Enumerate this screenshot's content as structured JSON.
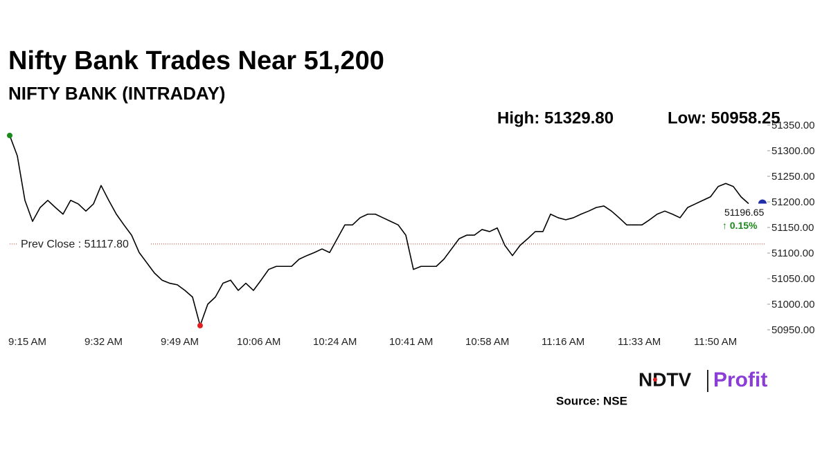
{
  "chart_data": {
    "type": "line",
    "title": "Nifty Bank Trades Near 51,200",
    "subtitle": "NIFTY BANK (INTRADAY)",
    "high": {
      "value": 51329.8,
      "label": "High: 51329.80"
    },
    "low": {
      "value": 50958.25,
      "label": "Low: 50958.25"
    },
    "prev_close": {
      "value": 51117.8,
      "label": "Prev Close : 51117.80"
    },
    "last": {
      "value": 51196.65,
      "label": "51196.65"
    },
    "change": "↑ 0.15%",
    "source": "Source: NSE",
    "brand": [
      "NDTV",
      "Profit"
    ],
    "color": "#000000",
    "categories": [
      "9:15 AM",
      null,
      null,
      null,
      null,
      null,
      null,
      null,
      null,
      null,
      "9:32 AM",
      null,
      null,
      null,
      null,
      null,
      null,
      null,
      null,
      null,
      "9:49 AM",
      null,
      null,
      null,
      null,
      null,
      null,
      null,
      null,
      null,
      "10:06 AM",
      null,
      null,
      null,
      null,
      null,
      null,
      null,
      null,
      null,
      "10:24 AM",
      null,
      null,
      null,
      null,
      null,
      null,
      null,
      null,
      null,
      "10:41 AM",
      null,
      null,
      null,
      null,
      null,
      null,
      null,
      null,
      null,
      "10:58 AM",
      null,
      null,
      null,
      null,
      null,
      null,
      null,
      null,
      null,
      "11:16 AM",
      null,
      null,
      null,
      null,
      null,
      null,
      null,
      null,
      null,
      "11:33 AM",
      null,
      null,
      null,
      null,
      null,
      null,
      null,
      null,
      null,
      "11:50 AM",
      null,
      null,
      null,
      null,
      null,
      null,
      null
    ],
    "values": [
      51329.8,
      51290,
      51203,
      51162,
      51189,
      51203,
      51189,
      51176,
      51203,
      51196,
      51182,
      51196,
      51232,
      51203,
      51176,
      51155,
      51135,
      51101,
      51081,
      51061,
      51047,
      51041,
      51038,
      51027,
      51014,
      50958.25,
      51000,
      51014,
      51041,
      51047,
      51027,
      51041,
      51027,
      51047,
      51068,
      51074,
      51074,
      51074,
      51088,
      51095,
      51101,
      51108,
      51101,
      51128,
      51155,
      51155,
      51169,
      51176,
      51176,
      51169,
      51162,
      51155,
      51135,
      51068,
      51074,
      51074,
      51074,
      51088,
      51108,
      51128,
      51135,
      51135,
      51146,
      51142,
      51149,
      51115,
      51095,
      51115,
      51128,
      51142,
      51142,
      51176,
      51169,
      51165,
      51169,
      51176,
      51182,
      51189,
      51192,
      51182,
      51169,
      51155,
      51155,
      51155,
      51165,
      51176,
      51182,
      51176,
      51169,
      51189,
      51196,
      51203,
      51210,
      51230,
      51236,
      51230,
      51210,
      51196.65
    ],
    "ylim": [
      50950,
      51350
    ],
    "yticks": [
      {
        "value": 50950,
        "label": "50950.00"
      },
      {
        "value": 51000,
        "label": "51000.00"
      },
      {
        "value": 51050,
        "label": "51050.00"
      },
      {
        "value": 51100,
        "label": "51100.00"
      },
      {
        "value": 51150,
        "label": "51150.00"
      },
      {
        "value": 51200,
        "label": "51200.00"
      },
      {
        "value": 51250,
        "label": "51250.00"
      },
      {
        "value": 51300,
        "label": "51300.00"
      },
      {
        "value": 51350,
        "label": "51350.00"
      }
    ]
  }
}
